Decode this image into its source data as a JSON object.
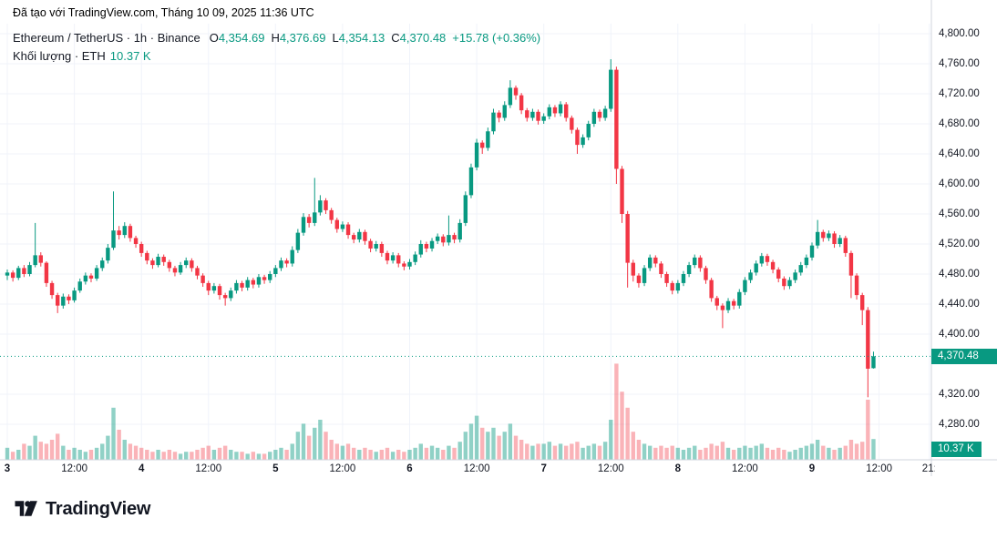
{
  "attribution": "Đã tạo với TradingView.com, Tháng 10 09, 2025 11:36 UTC",
  "legend": {
    "title": "Ethereum / TetherUS · 1h · Binance",
    "o_label": "O",
    "o_value": "4,354.69",
    "h_label": "H",
    "h_value": "4,376.69",
    "l_label": "L",
    "l_value": "4,354.13",
    "c_label": "C",
    "c_value": "4,370.48",
    "change": "+15.78 (+0.36%)"
  },
  "volume_legend": {
    "label": "Khối lượng · ETH",
    "value": "10.37 K"
  },
  "footer": {
    "logo_text": "TradingView"
  },
  "colors": {
    "up": "#089981",
    "down": "#f23645",
    "vol_up": "rgba(8,153,129,0.45)",
    "vol_down": "rgba(242,54,69,0.38)",
    "badge": "#089981",
    "axis_text": "#131722",
    "grid": "#f0f3fa",
    "axis_line": "#d1d4dc"
  },
  "chart_data": {
    "type": "candlestick",
    "title": "Ethereum / TetherUS, 1h, Binance",
    "symbol": "Ethereum / TetherUS",
    "timeframe": "1h",
    "exchange": "Binance",
    "last_price": 4370.48,
    "last_price_label": "4,370.48",
    "last_volume_label": "10.37 K",
    "last_candle": {
      "open": 4354.69,
      "high": 4376.69,
      "low": 4354.13,
      "close": 4370.48,
      "change": "+15.78 (+0.36%)"
    },
    "price_axis": {
      "min": 4280,
      "max": 4800,
      "ticks": [
        {
          "label": "4,800.00",
          "value": 4800
        },
        {
          "label": "4,760.00",
          "value": 4760
        },
        {
          "label": "4,720.00",
          "value": 4720
        },
        {
          "label": "4,680.00",
          "value": 4680
        },
        {
          "label": "4,640.00",
          "value": 4640
        },
        {
          "label": "4,600.00",
          "value": 4600
        },
        {
          "label": "4,560.00",
          "value": 4560
        },
        {
          "label": "4,520.00",
          "value": 4520
        },
        {
          "label": "4,480.00",
          "value": 4480
        },
        {
          "label": "4,440.00",
          "value": 4440
        },
        {
          "label": "4,400.00",
          "value": 4400
        },
        {
          "label": "4,320.00",
          "value": 4320
        },
        {
          "label": "4,280.00",
          "value": 4280
        }
      ]
    },
    "time_axis": {
      "ticks": [
        {
          "index": 0,
          "label": "3",
          "major": true
        },
        {
          "index": 12,
          "label": "12:00",
          "major": false
        },
        {
          "index": 24,
          "label": "4",
          "major": true
        },
        {
          "index": 36,
          "label": "12:00",
          "major": false
        },
        {
          "index": 48,
          "label": "5",
          "major": true
        },
        {
          "index": 60,
          "label": "12:00",
          "major": false
        },
        {
          "index": 72,
          "label": "6",
          "major": true
        },
        {
          "index": 84,
          "label": "12:00",
          "major": false
        },
        {
          "index": 96,
          "label": "7",
          "major": true
        },
        {
          "index": 108,
          "label": "12:00",
          "major": false
        },
        {
          "index": 120,
          "label": "8",
          "major": true
        },
        {
          "index": 132,
          "label": "12:00",
          "major": false
        },
        {
          "index": 144,
          "label": "9",
          "major": true
        },
        {
          "index": 156,
          "label": "12:00",
          "major": false
        },
        {
          "index": 165,
          "label": "21:",
          "major": false
        }
      ]
    },
    "columns": [
      "open",
      "high",
      "low",
      "close",
      "volume_k"
    ],
    "candles": [
      [
        4478,
        4486,
        4472,
        4482,
        6
      ],
      [
        4482,
        4485,
        4470,
        4475,
        4
      ],
      [
        4475,
        4491,
        4472,
        4488,
        5
      ],
      [
        4488,
        4492,
        4476,
        4480,
        8
      ],
      [
        4480,
        4496,
        4477,
        4492,
        7
      ],
      [
        4492,
        4548,
        4489,
        4505,
        12
      ],
      [
        4505,
        4509,
        4490,
        4495,
        9
      ],
      [
        4495,
        4497,
        4463,
        4468,
        8
      ],
      [
        4468,
        4471,
        4447,
        4452,
        10
      ],
      [
        4452,
        4455,
        4428,
        4438,
        13
      ],
      [
        4438,
        4454,
        4434,
        4450,
        7
      ],
      [
        4450,
        4453,
        4440,
        4445,
        5
      ],
      [
        4445,
        4462,
        4442,
        4458,
        6
      ],
      [
        4458,
        4474,
        4455,
        4470,
        5
      ],
      [
        4470,
        4482,
        4466,
        4478,
        4
      ],
      [
        4478,
        4481,
        4469,
        4474,
        5
      ],
      [
        4474,
        4492,
        4471,
        4488,
        6
      ],
      [
        4488,
        4502,
        4484,
        4498,
        8
      ],
      [
        4498,
        4520,
        4494,
        4515,
        12
      ],
      [
        4515,
        4590,
        4512,
        4538,
        26
      ],
      [
        4538,
        4544,
        4526,
        4532,
        15
      ],
      [
        4532,
        4549,
        4528,
        4544,
        10
      ],
      [
        4544,
        4547,
        4523,
        4528,
        8
      ],
      [
        4528,
        4531,
        4515,
        4520,
        7
      ],
      [
        4520,
        4523,
        4503,
        4508,
        6
      ],
      [
        4508,
        4511,
        4493,
        4498,
        5
      ],
      [
        4498,
        4501,
        4487,
        4492,
        4
      ],
      [
        4492,
        4507,
        4489,
        4503,
        5
      ],
      [
        4503,
        4506,
        4491,
        4496,
        4
      ],
      [
        4496,
        4499,
        4483,
        4488,
        5
      ],
      [
        4488,
        4491,
        4477,
        4482,
        4
      ],
      [
        4482,
        4496,
        4479,
        4492,
        3
      ],
      [
        4492,
        4502,
        4488,
        4498,
        4
      ],
      [
        4498,
        4501,
        4483,
        4488,
        4
      ],
      [
        4488,
        4491,
        4473,
        4478,
        5
      ],
      [
        4478,
        4481,
        4463,
        4468,
        6
      ],
      [
        4468,
        4471,
        4452,
        4458,
        7
      ],
      [
        4458,
        4468,
        4454,
        4464,
        5
      ],
      [
        4464,
        4467,
        4446,
        4452,
        6
      ],
      [
        4452,
        4455,
        4438,
        4448,
        7
      ],
      [
        4448,
        4462,
        4444,
        4458,
        5
      ],
      [
        4458,
        4472,
        4454,
        4468,
        4
      ],
      [
        4468,
        4471,
        4457,
        4462,
        4
      ],
      [
        4462,
        4476,
        4458,
        4472,
        3
      ],
      [
        4472,
        4475,
        4461,
        4466,
        4
      ],
      [
        4466,
        4480,
        4462,
        4476,
        3
      ],
      [
        4476,
        4479,
        4467,
        4472,
        3
      ],
      [
        4472,
        4484,
        4468,
        4480,
        4
      ],
      [
        4480,
        4492,
        4476,
        4488,
        5
      ],
      [
        4488,
        4502,
        4484,
        4498,
        6
      ],
      [
        4498,
        4501,
        4489,
        4494,
        5
      ],
      [
        4494,
        4517,
        4490,
        4512,
        8
      ],
      [
        4512,
        4540,
        4508,
        4535,
        14
      ],
      [
        4535,
        4561,
        4531,
        4556,
        18
      ],
      [
        4556,
        4560,
        4542,
        4548,
        12
      ],
      [
        4548,
        4608,
        4544,
        4562,
        16
      ],
      [
        4562,
        4585,
        4558,
        4578,
        20
      ],
      [
        4578,
        4581,
        4560,
        4565,
        14
      ],
      [
        4565,
        4568,
        4547,
        4552,
        10
      ],
      [
        4552,
        4555,
        4535,
        4540,
        8
      ],
      [
        4540,
        4550,
        4536,
        4546,
        7
      ],
      [
        4546,
        4549,
        4527,
        4532,
        8
      ],
      [
        4532,
        4535,
        4521,
        4526,
        6
      ],
      [
        4526,
        4540,
        4522,
        4536,
        5
      ],
      [
        4536,
        4539,
        4519,
        4524,
        6
      ],
      [
        4524,
        4527,
        4509,
        4514,
        5
      ],
      [
        4514,
        4524,
        4510,
        4520,
        4
      ],
      [
        4520,
        4523,
        4503,
        4508,
        5
      ],
      [
        4508,
        4511,
        4493,
        4498,
        6
      ],
      [
        4498,
        4509,
        4494,
        4505,
        4
      ],
      [
        4505,
        4508,
        4489,
        4494,
        5
      ],
      [
        4494,
        4497,
        4485,
        4490,
        4
      ],
      [
        4490,
        4500,
        4486,
        4496,
        5
      ],
      [
        4496,
        4510,
        4492,
        4506,
        6
      ],
      [
        4506,
        4525,
        4502,
        4520,
        8
      ],
      [
        4520,
        4523,
        4509,
        4514,
        6
      ],
      [
        4514,
        4528,
        4510,
        4524,
        7
      ],
      [
        4524,
        4534,
        4520,
        4530,
        6
      ],
      [
        4530,
        4533,
        4517,
        4522,
        5
      ],
      [
        4522,
        4558,
        4518,
        4532,
        7
      ],
      [
        4532,
        4535,
        4521,
        4526,
        6
      ],
      [
        4526,
        4553,
        4522,
        4548,
        9
      ],
      [
        4548,
        4590,
        4544,
        4585,
        14
      ],
      [
        4585,
        4627,
        4581,
        4622,
        18
      ],
      [
        4622,
        4660,
        4618,
        4655,
        22
      ],
      [
        4655,
        4658,
        4640,
        4648,
        16
      ],
      [
        4648,
        4675,
        4644,
        4670,
        14
      ],
      [
        4670,
        4700,
        4666,
        4695,
        16
      ],
      [
        4695,
        4698,
        4682,
        4688,
        12
      ],
      [
        4688,
        4710,
        4684,
        4705,
        14
      ],
      [
        4705,
        4738,
        4701,
        4728,
        18
      ],
      [
        4728,
        4731,
        4712,
        4718,
        12
      ],
      [
        4718,
        4721,
        4693,
        4698,
        10
      ],
      [
        4698,
        4701,
        4683,
        4688,
        8
      ],
      [
        4688,
        4700,
        4684,
        4696,
        7
      ],
      [
        4696,
        4699,
        4679,
        4684,
        8
      ],
      [
        4684,
        4694,
        4680,
        4690,
        8
      ],
      [
        4690,
        4706,
        4686,
        4702,
        9
      ],
      [
        4702,
        4705,
        4689,
        4694,
        7
      ],
      [
        4694,
        4710,
        4690,
        4706,
        8
      ],
      [
        4706,
        4709,
        4683,
        4688,
        7
      ],
      [
        4688,
        4691,
        4667,
        4672,
        8
      ],
      [
        4672,
        4675,
        4640,
        4652,
        9
      ],
      [
        4652,
        4666,
        4648,
        4662,
        6
      ],
      [
        4662,
        4684,
        4658,
        4680,
        7
      ],
      [
        4680,
        4700,
        4676,
        4696,
        8
      ],
      [
        4696,
        4699,
        4683,
        4688,
        7
      ],
      [
        4688,
        4704,
        4684,
        4700,
        9
      ],
      [
        4700,
        4766,
        4696,
        4752,
        20
      ],
      [
        4752,
        4756,
        4600,
        4620,
        48
      ],
      [
        4620,
        4624,
        4548,
        4560,
        34
      ],
      [
        4560,
        4564,
        4462,
        4495,
        26
      ],
      [
        4495,
        4499,
        4470,
        4478,
        14
      ],
      [
        4478,
        4481,
        4462,
        4468,
        10
      ],
      [
        4468,
        4492,
        4464,
        4488,
        8
      ],
      [
        4488,
        4506,
        4484,
        4502,
        7
      ],
      [
        4502,
        4505,
        4489,
        4494,
        6
      ],
      [
        4494,
        4497,
        4475,
        4480,
        7
      ],
      [
        4480,
        4483,
        4463,
        4468,
        6
      ],
      [
        4468,
        4471,
        4453,
        4458,
        7
      ],
      [
        4458,
        4472,
        4454,
        4468,
        6
      ],
      [
        4468,
        4484,
        4464,
        4480,
        5
      ],
      [
        4480,
        4496,
        4476,
        4492,
        6
      ],
      [
        4492,
        4506,
        4488,
        4502,
        7
      ],
      [
        4502,
        4505,
        4483,
        4488,
        5
      ],
      [
        4488,
        4491,
        4467,
        4472,
        6
      ],
      [
        4472,
        4475,
        4443,
        4448,
        8
      ],
      [
        4448,
        4451,
        4432,
        4438,
        7
      ],
      [
        4438,
        4441,
        4408,
        4432,
        9
      ],
      [
        4432,
        4448,
        4428,
        4444,
        6
      ],
      [
        4444,
        4447,
        4433,
        4438,
        5
      ],
      [
        4438,
        4460,
        4434,
        4456,
        6
      ],
      [
        4456,
        4476,
        4452,
        4472,
        7
      ],
      [
        4472,
        4486,
        4468,
        4482,
        6
      ],
      [
        4482,
        4498,
        4478,
        4494,
        7
      ],
      [
        4494,
        4508,
        4490,
        4504,
        8
      ],
      [
        4504,
        4507,
        4491,
        4496,
        6
      ],
      [
        4496,
        4499,
        4481,
        4486,
        5
      ],
      [
        4486,
        4489,
        4469,
        4474,
        6
      ],
      [
        4474,
        4477,
        4459,
        4464,
        5
      ],
      [
        4464,
        4476,
        4460,
        4472,
        4
      ],
      [
        4472,
        4486,
        4468,
        4482,
        5
      ],
      [
        4482,
        4496,
        4478,
        4492,
        6
      ],
      [
        4492,
        4506,
        4488,
        4502,
        7
      ],
      [
        4502,
        4522,
        4498,
        4518,
        8
      ],
      [
        4518,
        4552,
        4514,
        4536,
        10
      ],
      [
        4536,
        4539,
        4523,
        4528,
        7
      ],
      [
        4528,
        4538,
        4524,
        4534,
        6
      ],
      [
        4534,
        4537,
        4515,
        4520,
        5
      ],
      [
        4520,
        4532,
        4516,
        4528,
        6
      ],
      [
        4528,
        4531,
        4503,
        4508,
        7
      ],
      [
        4508,
        4511,
        4448,
        4478,
        10
      ],
      [
        4478,
        4481,
        4446,
        4452,
        8
      ],
      [
        4452,
        4455,
        4412,
        4432,
        9
      ],
      [
        4432,
        4436,
        4316,
        4354,
        30
      ],
      [
        4354.69,
        4376.69,
        4354.13,
        4370.48,
        10.37
      ]
    ]
  }
}
